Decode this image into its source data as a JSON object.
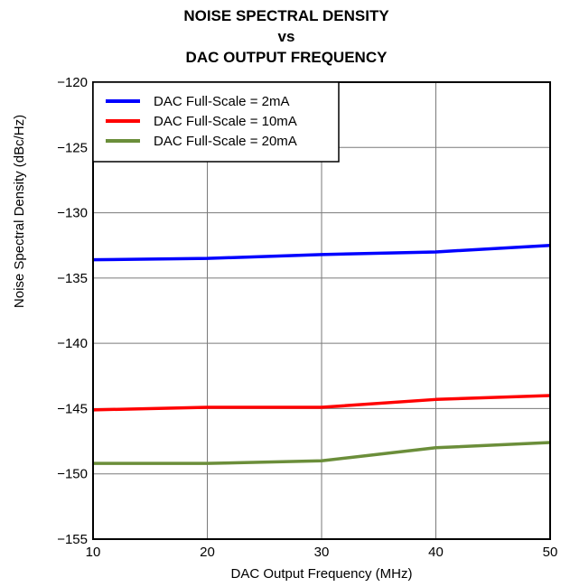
{
  "chart_data": {
    "type": "line",
    "title_lines": [
      "NOISE SPECTRAL DENSITY",
      "vs",
      "DAC OUTPUT FREQUENCY"
    ],
    "xlabel": "DAC Output Frequency (MHz)",
    "ylabel": "Noise Spectral Density (dBc/Hz)",
    "xlim": [
      10,
      50
    ],
    "ylim": [
      -155,
      -120
    ],
    "x_ticks": [
      10,
      20,
      30,
      40,
      50
    ],
    "x_tick_labels": [
      "10",
      "20",
      "30",
      "40",
      "50"
    ],
    "y_ticks": [
      -120,
      -125,
      -130,
      -135,
      -140,
      -145,
      -150,
      -155
    ],
    "y_tick_labels": [
      "−120",
      "−125",
      "−130",
      "−135",
      "−140",
      "−145",
      "−150",
      "−155"
    ],
    "grid": true,
    "legend_position": "top-left",
    "x": [
      10,
      20,
      30,
      40,
      50
    ],
    "series": [
      {
        "name": "DAC Full-Scale = 2mA",
        "color": "#0000ff",
        "values": [
          -133.6,
          -133.5,
          -133.2,
          -133.0,
          -132.5
        ]
      },
      {
        "name": "DAC Full-Scale = 10mA",
        "color": "#ff0000",
        "values": [
          -145.1,
          -144.9,
          -144.9,
          -144.3,
          -144.0
        ]
      },
      {
        "name": "DAC Full-Scale = 20mA",
        "color": "#6b8e3a",
        "values": [
          -149.2,
          -149.2,
          -149.0,
          -148.0,
          -147.6
        ]
      }
    ]
  }
}
